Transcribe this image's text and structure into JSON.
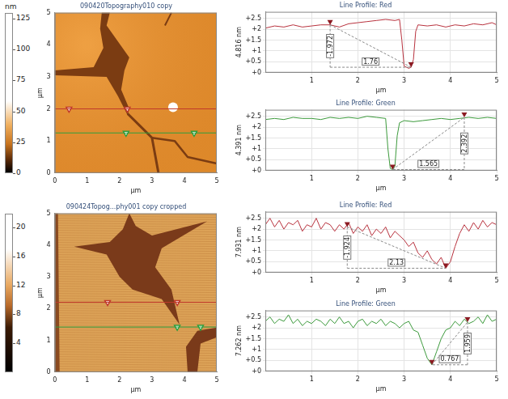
{
  "chart_data": [
    {
      "type": "image",
      "title": "090420Topography010 copy",
      "x_label": "µm",
      "y_label": "µm",
      "xlim": [
        0,
        5
      ],
      "ylim": [
        0,
        5
      ],
      "xticks": [
        0,
        1,
        2,
        3,
        4,
        5
      ],
      "yticks": [
        0,
        1,
        2,
        3,
        4,
        5
      ],
      "grid": false,
      "colorbar": {
        "label": "nm",
        "range": [
          0,
          130
        ],
        "ticks": [
          0,
          25,
          50,
          75,
          100,
          125
        ]
      },
      "profile_lines": [
        {
          "color": "#c0392b",
          "y": 2.0,
          "markers": [
            0.44,
            2.24
          ]
        },
        {
          "color": "#2e9e3e",
          "y": 1.25,
          "markers": [
            2.2,
            4.3
          ]
        }
      ]
    },
    {
      "type": "line",
      "title": "Line Profile: Red",
      "x_label": "µm",
      "y_label": "4.816 nm",
      "xlim": [
        0,
        5
      ],
      "ylim": [
        0,
        2.8
      ],
      "xticks": [
        1,
        2,
        3,
        4,
        5
      ],
      "yticks": [
        {
          "value": 0,
          "label": "+0"
        },
        {
          "value": 0.5,
          "label": "+0.5"
        },
        {
          "value": 1,
          "label": "+1"
        },
        {
          "value": 1.5,
          "label": "+1.5"
        },
        {
          "value": 2,
          "label": "+2"
        },
        {
          "value": 2.5,
          "label": "+2.5"
        }
      ],
      "grid": true,
      "color": "#b8323e",
      "x": [
        0,
        0.2,
        0.4,
        0.6,
        0.8,
        1,
        1.2,
        1.4,
        1.6,
        1.8,
        2,
        2.2,
        2.4,
        2.6,
        2.8,
        2.9,
        2.95,
        3,
        3.1,
        3.15,
        3.2,
        3.25,
        3.3,
        3.5,
        3.7,
        3.9,
        4.1,
        4.3,
        4.5,
        4.7,
        4.9,
        5
      ],
      "values": [
        2.05,
        2.15,
        2.1,
        2.2,
        2.1,
        2.15,
        2.2,
        2.2,
        2.1,
        2.25,
        2.3,
        2.35,
        2.4,
        2.45,
        2.4,
        2.45,
        1.5,
        0.3,
        0.2,
        0.25,
        0.6,
        1.9,
        2.2,
        2.15,
        2.2,
        2.1,
        2.2,
        2.15,
        2.25,
        2.2,
        2.3,
        2.2
      ],
      "cursors": [
        {
          "x": 1.4,
          "y": 2.2
        },
        {
          "x": 3.15,
          "y": 0.25
        }
      ],
      "cursor_height": -1.972,
      "cursor_distance": 1.76
    },
    {
      "type": "line",
      "title": "Line Profile: Green",
      "x_label": "µm",
      "y_label": "4.391 nm",
      "xlim": [
        0,
        5
      ],
      "ylim": [
        0,
        2.8
      ],
      "xticks": [
        1,
        2,
        3,
        4,
        5
      ],
      "yticks": [
        {
          "value": 0,
          "label": "+0"
        },
        {
          "value": 0.5,
          "label": "+0.5"
        },
        {
          "value": 1,
          "label": "+1"
        },
        {
          "value": 1.5,
          "label": "+1.5"
        },
        {
          "value": 2,
          "label": "+2"
        },
        {
          "value": 2.5,
          "label": "+2.5"
        }
      ],
      "grid": true,
      "color": "#3c9a3c",
      "x": [
        0,
        0.2,
        0.4,
        0.6,
        0.8,
        1,
        1.2,
        1.4,
        1.6,
        1.8,
        2,
        2.2,
        2.4,
        2.6,
        2.65,
        2.7,
        2.75,
        2.8,
        2.85,
        2.9,
        3,
        3.2,
        3.4,
        3.6,
        3.8,
        4,
        4.2,
        4.4,
        4.6,
        4.8,
        5
      ],
      "values": [
        2.35,
        2.4,
        2.35,
        2.45,
        2.4,
        2.4,
        2.35,
        2.45,
        2.4,
        2.45,
        2.4,
        2.5,
        2.45,
        2.4,
        1.0,
        0.1,
        0.05,
        0.2,
        1.6,
        2.2,
        2.3,
        2.25,
        2.3,
        2.35,
        2.4,
        2.35,
        2.4,
        2.45,
        2.4,
        2.45,
        2.4
      ],
      "cursors": [
        {
          "x": 2.75,
          "y": 0.05
        },
        {
          "x": 4.3,
          "y": 2.45
        }
      ],
      "cursor_height": 2.392,
      "cursor_distance": 1.565
    },
    {
      "type": "image",
      "title": "090424Topog...phy001 copy cropped",
      "x_label": "µm",
      "y_label": "µm",
      "xlim": [
        0,
        5
      ],
      "ylim": [
        0,
        5
      ],
      "xticks": [
        0,
        1,
        2,
        3,
        4,
        5
      ],
      "yticks": [
        0,
        1,
        2,
        3,
        4,
        5
      ],
      "grid": false,
      "colorbar": {
        "range": [
          0,
          22
        ],
        "ticks": [
          4,
          8,
          12,
          16,
          20
        ]
      },
      "profile_lines": [
        {
          "color": "#c0392b",
          "y": 2.2,
          "markers": [
            1.63,
            3.78
          ]
        },
        {
          "color": "#2e9e3e",
          "y": 1.42,
          "markers": [
            3.78,
            4.5
          ]
        }
      ]
    },
    {
      "type": "line",
      "title": "Line Profile: Red",
      "x_label": "µm",
      "y_label": "7.931 nm",
      "xlim": [
        0,
        5
      ],
      "ylim": [
        0,
        2.8
      ],
      "xticks": [
        1,
        2,
        3,
        4,
        5
      ],
      "yticks": [
        {
          "value": 0,
          "label": "+0"
        },
        {
          "value": 0.5,
          "label": "+0.5"
        },
        {
          "value": 1,
          "label": "+1"
        },
        {
          "value": 1.5,
          "label": "+1.5"
        },
        {
          "value": 2,
          "label": "+2"
        },
        {
          "value": 2.5,
          "label": "+2.5"
        }
      ],
      "grid": true,
      "color": "#b8323e",
      "x": [
        0,
        0.1,
        0.2,
        0.3,
        0.4,
        0.5,
        0.6,
        0.7,
        0.8,
        0.9,
        1,
        1.1,
        1.2,
        1.3,
        1.4,
        1.5,
        1.6,
        1.7,
        1.8,
        1.9,
        2,
        2.1,
        2.2,
        2.3,
        2.4,
        2.5,
        2.6,
        2.7,
        2.8,
        2.9,
        3,
        3.1,
        3.2,
        3.3,
        3.4,
        3.5,
        3.6,
        3.7,
        3.8,
        3.9,
        4,
        4.1,
        4.2,
        4.3,
        4.4,
        4.5,
        4.6,
        4.7,
        4.8,
        4.9,
        5
      ],
      "values": [
        2.2,
        2.5,
        2.1,
        2.4,
        2.0,
        2.3,
        2.2,
        2.4,
        1.9,
        2.2,
        2.1,
        2.5,
        2.0,
        2.3,
        2.2,
        1.9,
        2.2,
        2.0,
        2.3,
        1.8,
        2.1,
        1.9,
        2.2,
        1.7,
        2.0,
        1.8,
        2.1,
        1.6,
        1.9,
        1.7,
        1.5,
        1.2,
        1.4,
        0.9,
        0.7,
        1.0,
        0.6,
        0.4,
        0.7,
        0.2,
        0.5,
        1.2,
        1.8,
        2.2,
        1.9,
        2.3,
        2.0,
        2.4,
        2.1,
        2.3,
        2.2
      ],
      "cursors": [
        {
          "x": 1.77,
          "y": 2.1
        },
        {
          "x": 3.9,
          "y": 0.2
        }
      ],
      "cursor_height": -1.924,
      "cursor_distance": 2.13
    },
    {
      "type": "line",
      "title": "Line Profile: Green",
      "x_label": "µm",
      "y_label": "7.262 nm",
      "xlim": [
        0,
        5
      ],
      "ylim": [
        0,
        2.8
      ],
      "xticks": [
        1,
        2,
        3,
        4,
        5
      ],
      "yticks": [
        {
          "value": 0,
          "label": "+0"
        },
        {
          "value": 0.5,
          "label": "+0.5"
        },
        {
          "value": 1,
          "label": "+1"
        },
        {
          "value": 1.5,
          "label": "+1.5"
        },
        {
          "value": 2,
          "label": "+2"
        },
        {
          "value": 2.5,
          "label": "+2.5"
        }
      ],
      "grid": true,
      "color": "#3c9a3c",
      "x": [
        0,
        0.1,
        0.2,
        0.3,
        0.4,
        0.5,
        0.6,
        0.7,
        0.8,
        0.9,
        1,
        1.1,
        1.2,
        1.3,
        1.4,
        1.5,
        1.6,
        1.7,
        1.8,
        1.9,
        2,
        2.1,
        2.2,
        2.3,
        2.4,
        2.5,
        2.6,
        2.7,
        2.8,
        2.9,
        3,
        3.1,
        3.2,
        3.3,
        3.4,
        3.5,
        3.6,
        3.7,
        3.8,
        3.9,
        4,
        4.1,
        4.2,
        4.3,
        4.4,
        4.5,
        4.6,
        4.7,
        4.8,
        4.9,
        5
      ],
      "values": [
        2.3,
        2.5,
        2.2,
        2.4,
        2.3,
        2.6,
        2.2,
        2.4,
        2.1,
        2.3,
        2.2,
        2.4,
        2.3,
        2.1,
        2.4,
        2.2,
        2.5,
        2.2,
        2.3,
        2.0,
        2.3,
        2.4,
        2.1,
        2.3,
        2.2,
        2.4,
        2.1,
        2.3,
        2.2,
        2.0,
        2.2,
        2.3,
        1.9,
        1.8,
        1.2,
        0.6,
        0.3,
        0.9,
        1.5,
        1.9,
        2.0,
        2.3,
        2.1,
        2.4,
        2.2,
        2.3,
        2.5,
        2.2,
        2.6,
        2.3,
        2.4
      ],
      "cursors": [
        {
          "x": 3.6,
          "y": 0.3
        },
        {
          "x": 4.37,
          "y": 2.26
        }
      ],
      "cursor_height": 1.959,
      "cursor_distance": 0.767
    }
  ]
}
